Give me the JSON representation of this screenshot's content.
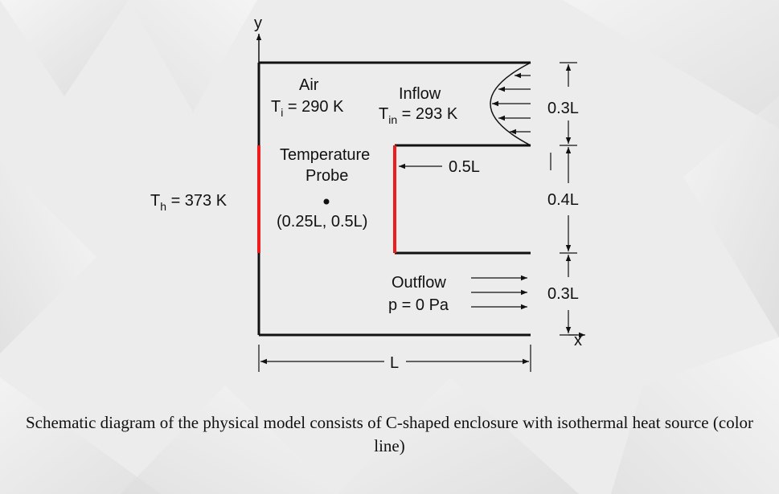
{
  "axes": {
    "y_label": "y",
    "x_label": "x"
  },
  "labels": {
    "air": "Air",
    "ti_main": "T",
    "ti_sub": "i",
    "ti_value": " = 290 K",
    "inflow": "Inflow",
    "tin_main": "T",
    "tin_sub": "in",
    "tin_value": " = 293 K",
    "probe_line1": "Temperature",
    "probe_line2": "Probe",
    "probe_coords": "(0.25L, 0.5L)",
    "th_main": "T",
    "th_sub": "h",
    "th_value": " = 373 K",
    "gap_dim": "0.5L",
    "outflow": "Outflow",
    "pressure": "p = 0 Pa",
    "length": "L"
  },
  "dimensions": {
    "top": "0.3L",
    "middle": "0.4L",
    "bottom": "0.3L"
  },
  "caption": "Schematic diagram of the physical model consists of C-shaped enclosure with isothermal heat source (color line)",
  "colors": {
    "heat_source": "#ee1c1c",
    "wall": "#111111"
  }
}
